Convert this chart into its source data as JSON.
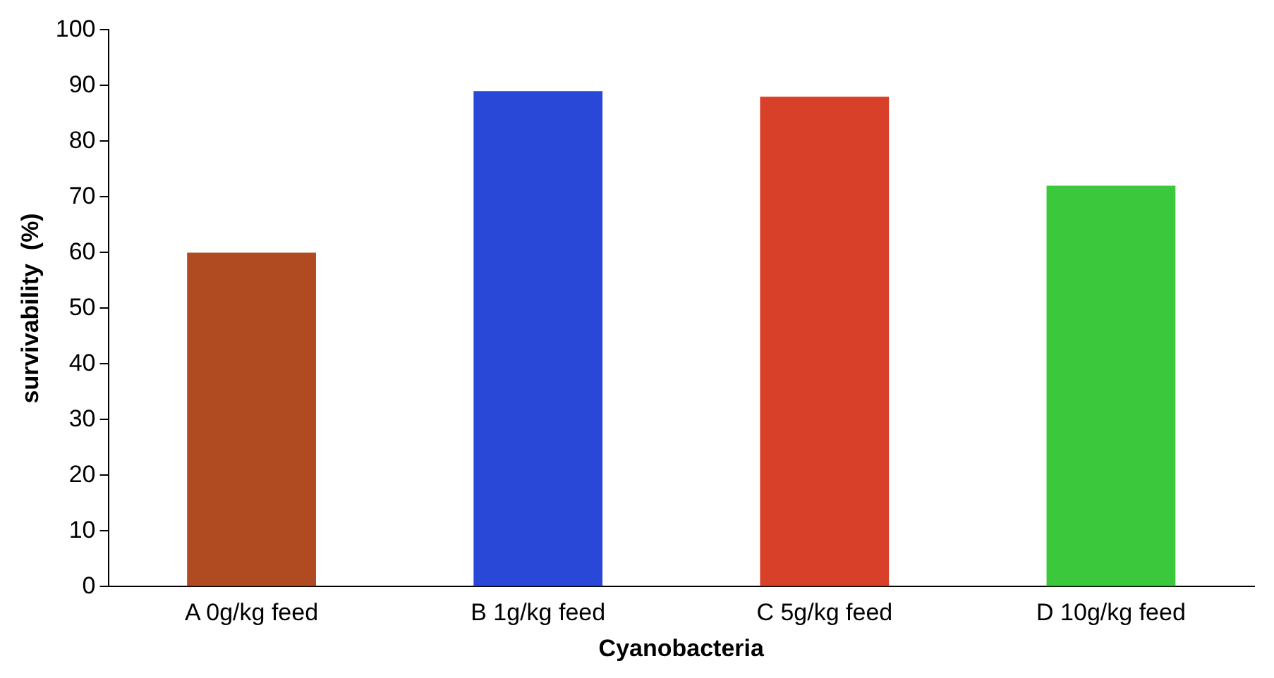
{
  "chart_data": {
    "type": "bar",
    "xlabel": "Cyanobacteria",
    "ylabel": "survivability  (%)",
    "categories": [
      "A 0g/kg feed",
      "B 1g/kg feed",
      "C 5g/kg feed",
      "D 10g/kg feed"
    ],
    "values": [
      60,
      89,
      88,
      72
    ],
    "colors": [
      "#b04a20",
      "#2a48d8",
      "#d8402a",
      "#3cc83c"
    ],
    "ylim": [
      0,
      100
    ],
    "yticks": [
      0,
      10,
      20,
      30,
      40,
      50,
      60,
      70,
      80,
      90,
      100
    ],
    "grid": false,
    "legend": false
  }
}
